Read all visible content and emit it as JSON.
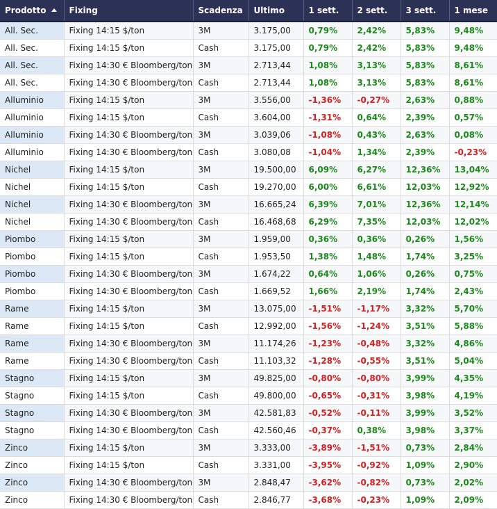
{
  "colors": {
    "header_bg": "#2b3256",
    "header_text": "#ffffff",
    "positive": "#1b8a1b",
    "negative": "#d32020",
    "highlight_cell": "#dce8f6"
  },
  "sort": {
    "column": "Prodotto",
    "direction": "ascending",
    "icon": "sort-asc-icon"
  },
  "headers": [
    "Prodotto",
    "Fixing",
    "Scadenza",
    "Ultimo",
    "1 sett.",
    "2 sett.",
    "3 sett.",
    "1 mese"
  ],
  "rows": [
    [
      "All. Sec.",
      "Fixing 14:15 $/ton",
      "3M",
      "3.175,00",
      "0,79%",
      "2,42%",
      "5,83%",
      "9,48%"
    ],
    [
      "All. Sec.",
      "Fixing 14:15 $/ton",
      "Cash",
      "3.175,00",
      "0,79%",
      "2,42%",
      "5,83%",
      "9,48%"
    ],
    [
      "All. Sec.",
      "Fixing 14:30 € Bloomberg/ton",
      "3M",
      "2.713,44",
      "1,08%",
      "3,13%",
      "5,83%",
      "8,61%"
    ],
    [
      "All. Sec.",
      "Fixing 14:30 € Bloomberg/ton",
      "Cash",
      "2.713,44",
      "1,08%",
      "3,13%",
      "5,83%",
      "8,61%"
    ],
    [
      "Alluminio",
      "Fixing 14:15 $/ton",
      "3M",
      "3.556,00",
      "-1,36%",
      "-0,27%",
      "2,63%",
      "0,88%"
    ],
    [
      "Alluminio",
      "Fixing 14:15 $/ton",
      "Cash",
      "3.604,00",
      "-1,31%",
      "0,64%",
      "2,39%",
      "0,57%"
    ],
    [
      "Alluminio",
      "Fixing 14:30 € Bloomberg/ton",
      "3M",
      "3.039,06",
      "-1,08%",
      "0,43%",
      "2,63%",
      "0,08%"
    ],
    [
      "Alluminio",
      "Fixing 14:30 € Bloomberg/ton",
      "Cash",
      "3.080,08",
      "-1,04%",
      "1,34%",
      "2,39%",
      "-0,23%"
    ],
    [
      "Nichel",
      "Fixing 14:15 $/ton",
      "3M",
      "19.500,00",
      "6,09%",
      "6,27%",
      "12,36%",
      "13,04%"
    ],
    [
      "Nichel",
      "Fixing 14:15 $/ton",
      "Cash",
      "19.270,00",
      "6,00%",
      "6,61%",
      "12,03%",
      "12,92%"
    ],
    [
      "Nichel",
      "Fixing 14:30 € Bloomberg/ton",
      "3M",
      "16.665,24",
      "6,39%",
      "7,01%",
      "12,36%",
      "12,14%"
    ],
    [
      "Nichel",
      "Fixing 14:30 € Bloomberg/ton",
      "Cash",
      "16.468,68",
      "6,29%",
      "7,35%",
      "12,03%",
      "12,02%"
    ],
    [
      "Piombo",
      "Fixing 14:15 $/ton",
      "3M",
      "1.959,00",
      "0,36%",
      "0,36%",
      "0,26%",
      "1,56%"
    ],
    [
      "Piombo",
      "Fixing 14:15 $/ton",
      "Cash",
      "1.953,50",
      "1,38%",
      "1,48%",
      "1,74%",
      "3,25%"
    ],
    [
      "Piombo",
      "Fixing 14:30 € Bloomberg/ton",
      "3M",
      "1.674,22",
      "0,64%",
      "1,06%",
      "0,26%",
      "0,75%"
    ],
    [
      "Piombo",
      "Fixing 14:30 € Bloomberg/ton",
      "Cash",
      "1.669,52",
      "1,66%",
      "2,19%",
      "1,74%",
      "2,43%"
    ],
    [
      "Rame",
      "Fixing 14:15 $/ton",
      "3M",
      "13.075,00",
      "-1,51%",
      "-1,17%",
      "3,32%",
      "5,70%"
    ],
    [
      "Rame",
      "Fixing 14:15 $/ton",
      "Cash",
      "12.992,00",
      "-1,56%",
      "-1,24%",
      "3,51%",
      "5,88%"
    ],
    [
      "Rame",
      "Fixing 14:30 € Bloomberg/ton",
      "3M",
      "11.174,26",
      "-1,23%",
      "-0,48%",
      "3,32%",
      "4,86%"
    ],
    [
      "Rame",
      "Fixing 14:30 € Bloomberg/ton",
      "Cash",
      "11.103,32",
      "-1,28%",
      "-0,55%",
      "3,51%",
      "5,04%"
    ],
    [
      "Stagno",
      "Fixing 14:15 $/ton",
      "3M",
      "49.825,00",
      "-0,80%",
      "-0,80%",
      "3,99%",
      "4,35%"
    ],
    [
      "Stagno",
      "Fixing 14:15 $/ton",
      "Cash",
      "49.800,00",
      "-0,65%",
      "-0,31%",
      "3,98%",
      "4,19%"
    ],
    [
      "Stagno",
      "Fixing 14:30 € Bloomberg/ton",
      "3M",
      "42.581,83",
      "-0,52%",
      "-0,11%",
      "3,99%",
      "3,52%"
    ],
    [
      "Stagno",
      "Fixing 14:30 € Bloomberg/ton",
      "Cash",
      "42.560,46",
      "-0,37%",
      "0,38%",
      "3,98%",
      "3,37%"
    ],
    [
      "Zinco",
      "Fixing 14:15 $/ton",
      "3M",
      "3.333,00",
      "-3,89%",
      "-1,51%",
      "0,73%",
      "2,84%"
    ],
    [
      "Zinco",
      "Fixing 14:15 $/ton",
      "Cash",
      "3.331,00",
      "-3,95%",
      "-0,92%",
      "1,09%",
      "2,90%"
    ],
    [
      "Zinco",
      "Fixing 14:30 € Bloomberg/ton",
      "3M",
      "2.848,47",
      "-3,62%",
      "-0,82%",
      "0,73%",
      "2,02%"
    ],
    [
      "Zinco",
      "Fixing 14:30 € Bloomberg/ton",
      "Cash",
      "2.846,77",
      "-3,68%",
      "-0,23%",
      "1,09%",
      "2,09%"
    ]
  ]
}
